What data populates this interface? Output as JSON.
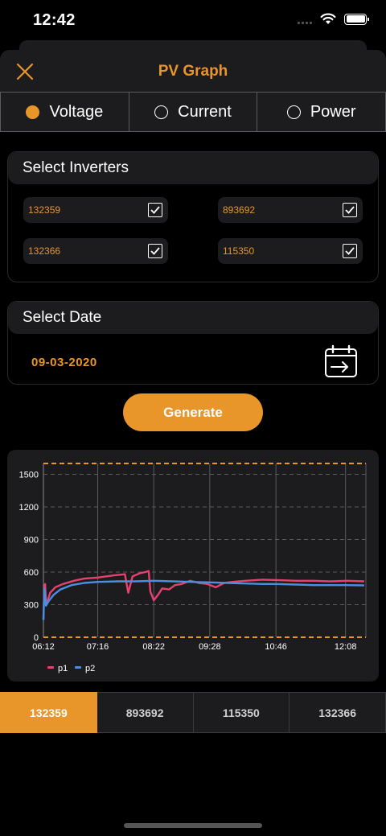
{
  "status_bar": {
    "time": "12:42"
  },
  "header": {
    "title": "PV Graph",
    "close_icon": "close-icon"
  },
  "segments": [
    {
      "label": "Voltage",
      "selected": true
    },
    {
      "label": "Current",
      "selected": false
    },
    {
      "label": "Power",
      "selected": false
    }
  ],
  "inverters": {
    "title": "Select Inverters",
    "items": [
      {
        "label": "132359",
        "checked": true
      },
      {
        "label": "893692",
        "checked": true
      },
      {
        "label": "132366",
        "checked": true
      },
      {
        "label": "115350",
        "checked": true
      }
    ]
  },
  "date": {
    "title": "Select Date",
    "value": "09-03-2020",
    "icon": "calendar-icon"
  },
  "generate_label": "Generate",
  "colors": {
    "accent": "#e8952a",
    "p1": "#e8416f",
    "p2": "#4a90e2",
    "limit": "#e8952a"
  },
  "chart_data": {
    "type": "line",
    "x_ticks": [
      "06:12",
      "07:16",
      "08:22",
      "09:28",
      "10:46",
      "12:08"
    ],
    "y_ticks": [
      0,
      300,
      600,
      900,
      1200,
      1500
    ],
    "ylim": [
      0,
      1500
    ],
    "xlim": [
      "06:12",
      "12:32"
    ],
    "limit_lines": [
      0,
      1600
    ],
    "grid": true,
    "legend": "bottom-left",
    "series": [
      {
        "name": "p1",
        "color": "#e8416f",
        "points": [
          [
            "06:12",
            160
          ],
          [
            "06:13",
            460
          ],
          [
            "06:14",
            490
          ],
          [
            "06:15",
            320
          ],
          [
            "06:17",
            340
          ],
          [
            "06:20",
            410
          ],
          [
            "06:26",
            460
          ],
          [
            "06:35",
            490
          ],
          [
            "06:48",
            520
          ],
          [
            "07:00",
            540
          ],
          [
            "07:16",
            550
          ],
          [
            "07:35",
            570
          ],
          [
            "07:48",
            580
          ],
          [
            "07:52",
            410
          ],
          [
            "07:57",
            560
          ],
          [
            "08:06",
            590
          ],
          [
            "08:12",
            600
          ],
          [
            "08:16",
            610
          ],
          [
            "08:18",
            420
          ],
          [
            "08:22",
            340
          ],
          [
            "08:27",
            390
          ],
          [
            "08:32",
            450
          ],
          [
            "08:40",
            440
          ],
          [
            "08:47",
            480
          ],
          [
            "08:55",
            490
          ],
          [
            "09:05",
            520
          ],
          [
            "09:15",
            500
          ],
          [
            "09:25",
            490
          ],
          [
            "09:35",
            460
          ],
          [
            "09:45",
            500
          ],
          [
            "09:55",
            510
          ],
          [
            "10:10",
            520
          ],
          [
            "10:30",
            530
          ],
          [
            "10:50",
            525
          ],
          [
            "11:10",
            520
          ],
          [
            "11:30",
            520
          ],
          [
            "11:50",
            515
          ],
          [
            "12:10",
            520
          ],
          [
            "12:30",
            515
          ]
        ]
      },
      {
        "name": "p2",
        "color": "#4a90e2",
        "points": [
          [
            "06:12",
            160
          ],
          [
            "06:13",
            450
          ],
          [
            "06:15",
            290
          ],
          [
            "06:18",
            330
          ],
          [
            "06:24",
            390
          ],
          [
            "06:32",
            440
          ],
          [
            "06:45",
            480
          ],
          [
            "07:00",
            500
          ],
          [
            "07:16",
            510
          ],
          [
            "07:40",
            515
          ],
          [
            "08:00",
            515
          ],
          [
            "08:22",
            520
          ],
          [
            "08:45",
            515
          ],
          [
            "09:05",
            510
          ],
          [
            "09:28",
            505
          ],
          [
            "09:50",
            500
          ],
          [
            "10:10",
            495
          ],
          [
            "10:30",
            490
          ],
          [
            "10:46",
            490
          ],
          [
            "11:10",
            485
          ],
          [
            "11:30",
            480
          ],
          [
            "11:50",
            480
          ],
          [
            "12:08",
            480
          ],
          [
            "12:30",
            478
          ]
        ]
      }
    ]
  },
  "bottom_tabs": [
    {
      "label": "132359",
      "active": true
    },
    {
      "label": "893692",
      "active": false
    },
    {
      "label": "115350",
      "active": false
    },
    {
      "label": "132366",
      "active": false
    }
  ]
}
